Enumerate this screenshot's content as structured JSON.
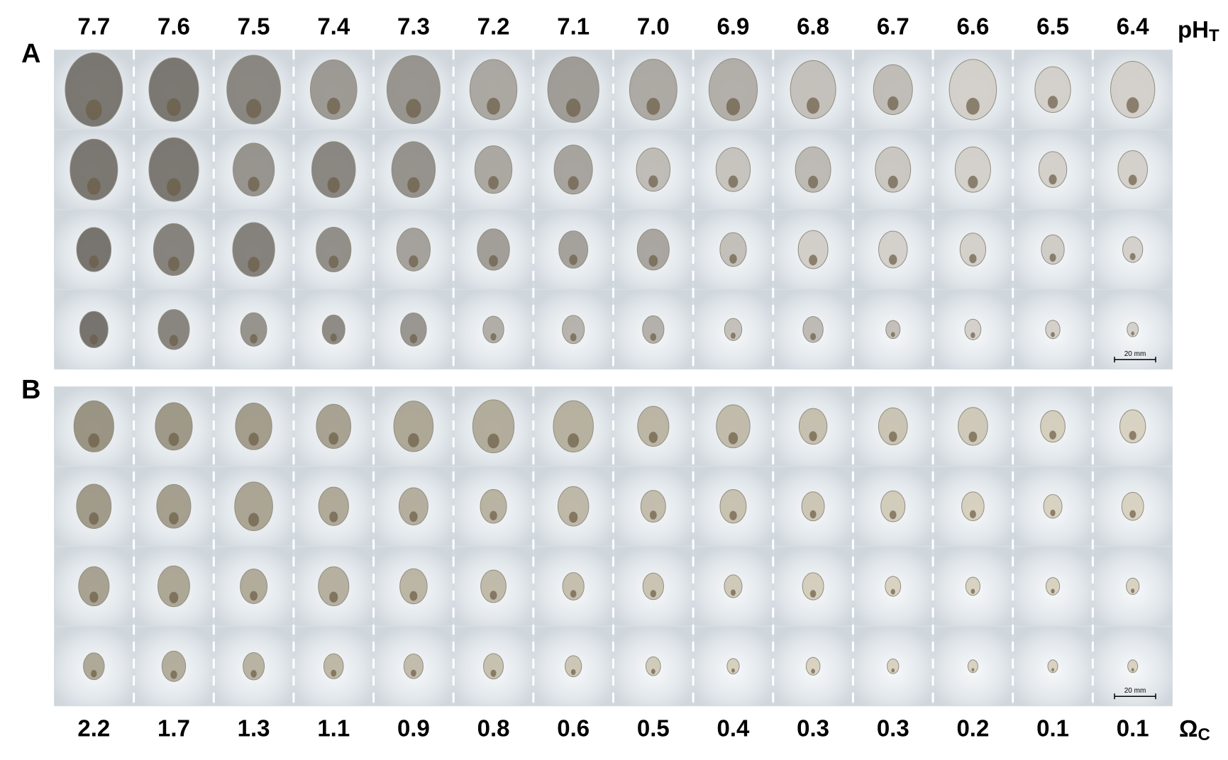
{
  "panels": [
    {
      "label": "A",
      "scale_bar": "20 mm"
    },
    {
      "label": "B",
      "scale_bar": "20 mm"
    }
  ],
  "top_axis": {
    "label": "pH",
    "subscript": "T",
    "values": [
      "7.7",
      "7.6",
      "7.5",
      "7.4",
      "7.3",
      "7.2",
      "7.1",
      "7.0",
      "6.9",
      "6.8",
      "6.7",
      "6.6",
      "6.5",
      "6.4"
    ]
  },
  "bottom_axis": {
    "label": "Ω",
    "subscript": "C",
    "values": [
      "2.2",
      "1.7",
      "1.3",
      "1.1",
      "0.9",
      "0.8",
      "0.6",
      "0.5",
      "0.4",
      "0.3",
      "0.3",
      "0.2",
      "0.1",
      "0.1"
    ]
  }
}
